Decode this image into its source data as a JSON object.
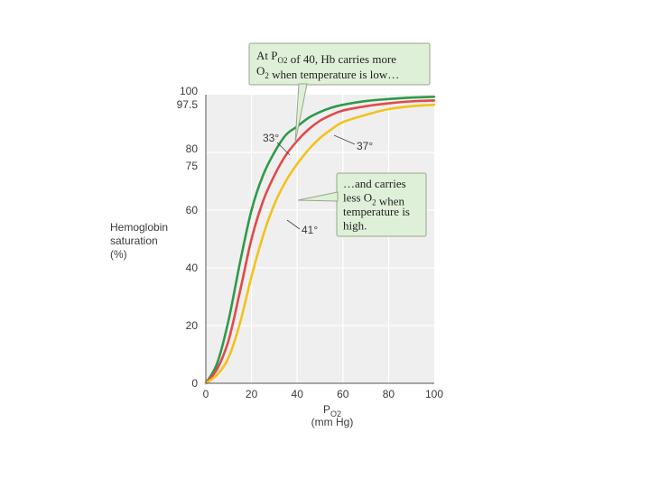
{
  "chart_data": {
    "type": "line",
    "title": "",
    "xlabel_main": "P",
    "xlabel_sub": "O2",
    "xlabel_units": "(mm Hg)",
    "ylabel_lines": [
      "Hemoglobin",
      "saturation",
      "(%)"
    ],
    "xlim": [
      0,
      100
    ],
    "ylim": [
      0,
      100
    ],
    "xticks": [
      0,
      20,
      40,
      60,
      80,
      100
    ],
    "yticks": [
      0,
      20,
      40,
      60,
      75,
      80,
      97.5,
      100
    ],
    "x": [
      0,
      5,
      10,
      15,
      20,
      25,
      30,
      35,
      40,
      45,
      50,
      55,
      60,
      70,
      80,
      90,
      100
    ],
    "series": [
      {
        "name": "33°",
        "color": "#2e9a4a",
        "values": [
          0,
          7,
          22,
          42,
          60,
          72,
          80,
          86,
          89,
          92,
          94,
          95.5,
          96.5,
          97.8,
          98.5,
          99,
          99.3
        ]
      },
      {
        "name": "37°",
        "color": "#e04a4a",
        "values": [
          0,
          5,
          15,
          32,
          50,
          63,
          72,
          79,
          84,
          88,
          91,
          93,
          94.5,
          96,
          97,
          97.7,
          98
        ]
      },
      {
        "name": "41°",
        "color": "#f2c21a",
        "values": [
          0,
          3,
          9,
          21,
          37,
          51,
          62,
          70,
          76,
          81,
          85,
          88,
          90.5,
          93,
          95,
          96,
          96.5
        ]
      }
    ],
    "grid": true,
    "background": "#efefef",
    "grid_color": "#ffffff",
    "annotations": [
      {
        "id": "upper",
        "lines": [
          [
            {
              "t": "At P"
            },
            {
              "t": "O2",
              "sub": true
            },
            {
              "t": " of 40, Hb carries more"
            }
          ],
          [
            {
              "t": "O"
            },
            {
              "t": "2",
              "sub": true
            },
            {
              "t": " when temperature is low…"
            }
          ]
        ],
        "bg": "#dff0d8",
        "border": "#9aa58a"
      },
      {
        "id": "lower",
        "lines": [
          [
            {
              "t": "…and carries"
            }
          ],
          [
            {
              "t": "less O"
            },
            {
              "t": "2",
              "sub": true
            },
            {
              "t": " when"
            }
          ],
          [
            {
              "t": "temperature is"
            }
          ],
          [
            {
              "t": "high."
            }
          ]
        ],
        "bg": "#dff0d8",
        "border": "#9aa58a"
      }
    ]
  }
}
